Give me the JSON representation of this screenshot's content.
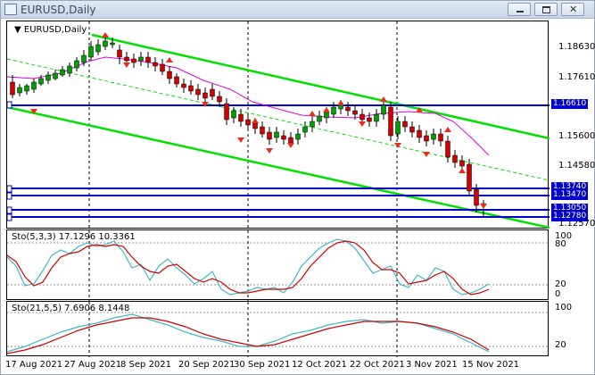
{
  "window": {
    "title": "EURUSD,Daily",
    "minimize_label": "minimize",
    "restore_label": "restore",
    "close_label": "close"
  },
  "main": {
    "symbol": "EURUSD,Daily",
    "price_labels": [
      "1.18630",
      "1.17610",
      "1.15600",
      "1.14580",
      "1.12570"
    ],
    "tags": [
      "1.16610",
      "1.13740",
      "1.13470",
      "1.13050",
      "1.12780"
    ]
  },
  "stoch1": {
    "label": "Sto(5,3,3) 17.1296 10.3361",
    "levels": [
      "80",
      "20",
      "0"
    ]
  },
  "stoch2": {
    "label": "Sto(21,5,5) 7.6906 8.1448",
    "levels": [
      "100",
      "20"
    ]
  },
  "dates": [
    "17 Aug 2021",
    "27 Aug 2021",
    "8 Sep 2021",
    "20 Sep 2021",
    "30 Sep 2021",
    "12 Oct 2021",
    "22 Oct 2021",
    "3 Nov 2021",
    "15 Nov 2021"
  ],
  "chart_data": {
    "type": "candlestick",
    "symbol": "EURUSD",
    "timeframe": "Daily",
    "series": [
      {
        "name": "Sto(5,3,3)",
        "values": [
          17.1296,
          10.3361
        ]
      },
      {
        "name": "Sto(21,5,5)",
        "values": [
          7.6906,
          8.1448
        ]
      }
    ]
  },
  "colors": {
    "channel": "#00e000",
    "level_line": "#0000cc",
    "ma": "#e000e0",
    "bull": "#00a000",
    "bear": "#d00000",
    "stoch_main": "#3cb8c8",
    "stoch_signal": "#d00000"
  }
}
